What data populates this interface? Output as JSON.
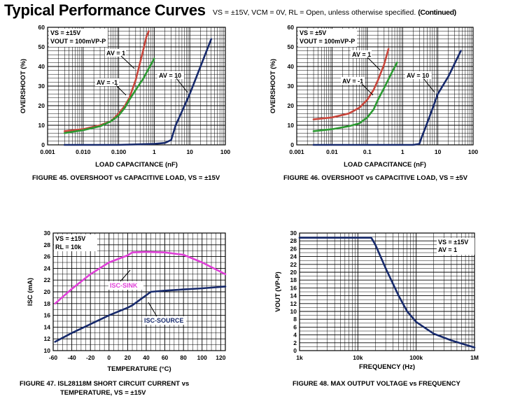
{
  "page": {
    "title": "Typical Performance Curves",
    "subtitle_conditions": "VS = ±15V, VCM = 0V, RL = Open, unless otherwise specified.",
    "subtitle_continued": "(Continued)"
  },
  "colors": {
    "red": "#c8463c",
    "green": "#2c9a32",
    "navy": "#172a6c",
    "magenta": "#e040d8"
  },
  "chart_data": [
    {
      "id": "fig45",
      "type": "line",
      "x_scale": "log",
      "caption": "FIGURE 45.  OVERSHOOT vs CAPACITIVE LOAD, VS = ±15V",
      "xlabel": "LOAD CAPACITANCE (nF)",
      "ylabel": "OVERSHOOT (%)",
      "xlim": [
        0.001,
        100
      ],
      "ylim": [
        0,
        60
      ],
      "xticks": [
        0.001,
        0.01,
        0.1,
        1,
        10,
        100
      ],
      "xtick_labels": [
        "0.001",
        "0.010",
        "0.100",
        "1",
        "10",
        "100"
      ],
      "yticks": [
        0,
        10,
        20,
        30,
        40,
        50,
        60
      ],
      "ytick_labels": [
        "0",
        "10",
        "20",
        "30",
        "40",
        "50",
        "60"
      ],
      "legend": [
        "VS = ±15V",
        "VOUT = 100mVP-P"
      ],
      "series": [
        {
          "name": "AV = 1",
          "color": "#c8463c",
          "x": [
            0.003,
            0.01,
            0.03,
            0.06,
            0.1,
            0.15,
            0.2,
            0.3,
            0.4,
            0.5,
            0.6,
            0.7
          ],
          "y": [
            7,
            8,
            10,
            12,
            16,
            20,
            24,
            33,
            42,
            49,
            55,
            58
          ]
        },
        {
          "name": "AV = -1",
          "color": "#2c9a32",
          "x": [
            0.003,
            0.01,
            0.03,
            0.06,
            0.1,
            0.15,
            0.2,
            0.3,
            0.5,
            0.7,
            1.0
          ],
          "y": [
            6,
            7.5,
            9.5,
            12,
            15,
            19,
            23,
            28,
            34,
            39,
            44
          ]
        },
        {
          "name": "AV = 10",
          "color": "#172a6c",
          "x": [
            0.003,
            0.1,
            1,
            2,
            3,
            4,
            6,
            10,
            20,
            40
          ],
          "y": [
            0,
            0,
            0.5,
            1,
            2.5,
            10,
            17,
            26,
            40,
            54
          ]
        }
      ],
      "annotations": [
        "AV = 1",
        "AV = -1",
        "AV = 10"
      ]
    },
    {
      "id": "fig46",
      "type": "line",
      "x_scale": "log",
      "caption": "FIGURE 46.  OVERSHOOT vs CAPACITIVE LOAD, VS = ±5V",
      "xlabel": "LOAD CAPACITANCE (nF)",
      "ylabel": "OVERSHOOT (%)",
      "xlim": [
        0.001,
        100
      ],
      "ylim": [
        0,
        60
      ],
      "xticks": [
        0.001,
        0.01,
        0.1,
        1,
        10,
        100
      ],
      "xtick_labels": [
        "0.001",
        "0.01",
        "0.1",
        "1",
        "10",
        "100"
      ],
      "yticks": [
        0,
        10,
        20,
        30,
        40,
        50,
        60
      ],
      "ytick_labels": [
        "0",
        "10",
        "20",
        "30",
        "40",
        "50",
        "60"
      ],
      "legend": [
        "VS = ±5V",
        "VOUT = 100mVP-P"
      ],
      "series": [
        {
          "name": "AV = 1",
          "color": "#c8463c",
          "x": [
            0.003,
            0.01,
            0.03,
            0.06,
            0.1,
            0.15,
            0.2,
            0.3,
            0.4
          ],
          "y": [
            13,
            14,
            16,
            19,
            23,
            28,
            33,
            41,
            49
          ]
        },
        {
          "name": "AV = -1",
          "color": "#2c9a32",
          "x": [
            0.003,
            0.01,
            0.03,
            0.06,
            0.1,
            0.15,
            0.2,
            0.3,
            0.5,
            0.7
          ],
          "y": [
            7,
            8,
            9.5,
            11,
            14,
            18,
            23,
            29,
            37,
            42
          ]
        },
        {
          "name": "AV = 10",
          "color": "#172a6c",
          "x": [
            0.003,
            0.5,
            2,
            3,
            3.5,
            4.5,
            6,
            10,
            20,
            45
          ],
          "y": [
            0,
            0,
            0,
            0.5,
            4,
            9,
            15,
            26,
            35,
            48
          ]
        }
      ],
      "annotations": [
        "AV = 1",
        "AV = -1",
        "AV = 10"
      ]
    },
    {
      "id": "fig47",
      "type": "line",
      "x_scale": "linear",
      "caption_line1": "FIGURE 47.  ISL28118M SHORT CIRCUIT CURRENT vs",
      "caption_line2": "TEMPERATURE, VS = ±15V",
      "xlabel": "TEMPERATURE (°C)",
      "ylabel": "ISC (mA)",
      "xlim": [
        -60,
        125
      ],
      "ylim": [
        10,
        30
      ],
      "xticks": [
        -60,
        -40,
        -20,
        0,
        20,
        40,
        60,
        80,
        100,
        120
      ],
      "xtick_labels": [
        "-60",
        "-40",
        "-20",
        "0",
        "20",
        "40",
        "60",
        "80",
        "100",
        "120"
      ],
      "yticks": [
        10,
        12,
        14,
        16,
        18,
        20,
        22,
        24,
        26,
        28,
        30
      ],
      "ytick_labels": [
        "10",
        "12",
        "14",
        "16",
        "18",
        "20",
        "22",
        "24",
        "26",
        "28",
        "30"
      ],
      "legend": [
        "VS = ±15V",
        "RL = 10k"
      ],
      "series": [
        {
          "name": "ISC-SINK",
          "color": "#e040d8",
          "x": [
            -58,
            -40,
            -20,
            0,
            20,
            25,
            40,
            60,
            80,
            100,
            125
          ],
          "y": [
            18,
            20.5,
            23,
            25,
            26.2,
            26.7,
            26.8,
            26.7,
            26.3,
            25,
            23
          ]
        },
        {
          "name": "ISC-SOURCE",
          "color": "#172a6c",
          "x": [
            -58,
            -40,
            -20,
            0,
            20,
            25,
            45,
            60,
            80,
            100,
            125
          ],
          "y": [
            11.5,
            13,
            14.5,
            16,
            17.3,
            17.7,
            20,
            20.2,
            20.4,
            20.6,
            20.9
          ]
        }
      ],
      "annotations": [
        "ISC-SINK",
        "ISC-SOURCE"
      ]
    },
    {
      "id": "fig48",
      "type": "line",
      "x_scale": "log",
      "caption": "FIGURE 48.  MAX OUTPUT VOLTAGE vs FREQUENCY",
      "xlabel": "FREQUENCY (Hz)",
      "ylabel": "VOUT (VP-P)",
      "xlim": [
        1000,
        1000000
      ],
      "ylim": [
        0,
        30
      ],
      "xticks": [
        1000,
        10000,
        100000,
        1000000
      ],
      "xtick_labels": [
        "1k",
        "10k",
        "100k",
        "1M"
      ],
      "yticks": [
        0,
        2,
        4,
        6,
        8,
        10,
        12,
        14,
        16,
        18,
        20,
        22,
        24,
        26,
        28,
        30
      ],
      "ytick_labels": [
        "0",
        "2",
        "4",
        "6",
        "8",
        "10",
        "12",
        "14",
        "16",
        "18",
        "20",
        "22",
        "24",
        "26",
        "28",
        "30"
      ],
      "legend": [
        "VS = ±15V",
        "AV = 1"
      ],
      "series": [
        {
          "name": "VOUT",
          "color": "#172a6c",
          "x": [
            1000,
            10000,
            17000,
            20000,
            30000,
            50000,
            70000,
            100000,
            200000,
            400000,
            700000,
            1000000
          ],
          "y": [
            28.8,
            28.8,
            28.8,
            27,
            21,
            14,
            10,
            7.3,
            4.3,
            2.6,
            1.5,
            0.8
          ]
        }
      ]
    }
  ]
}
